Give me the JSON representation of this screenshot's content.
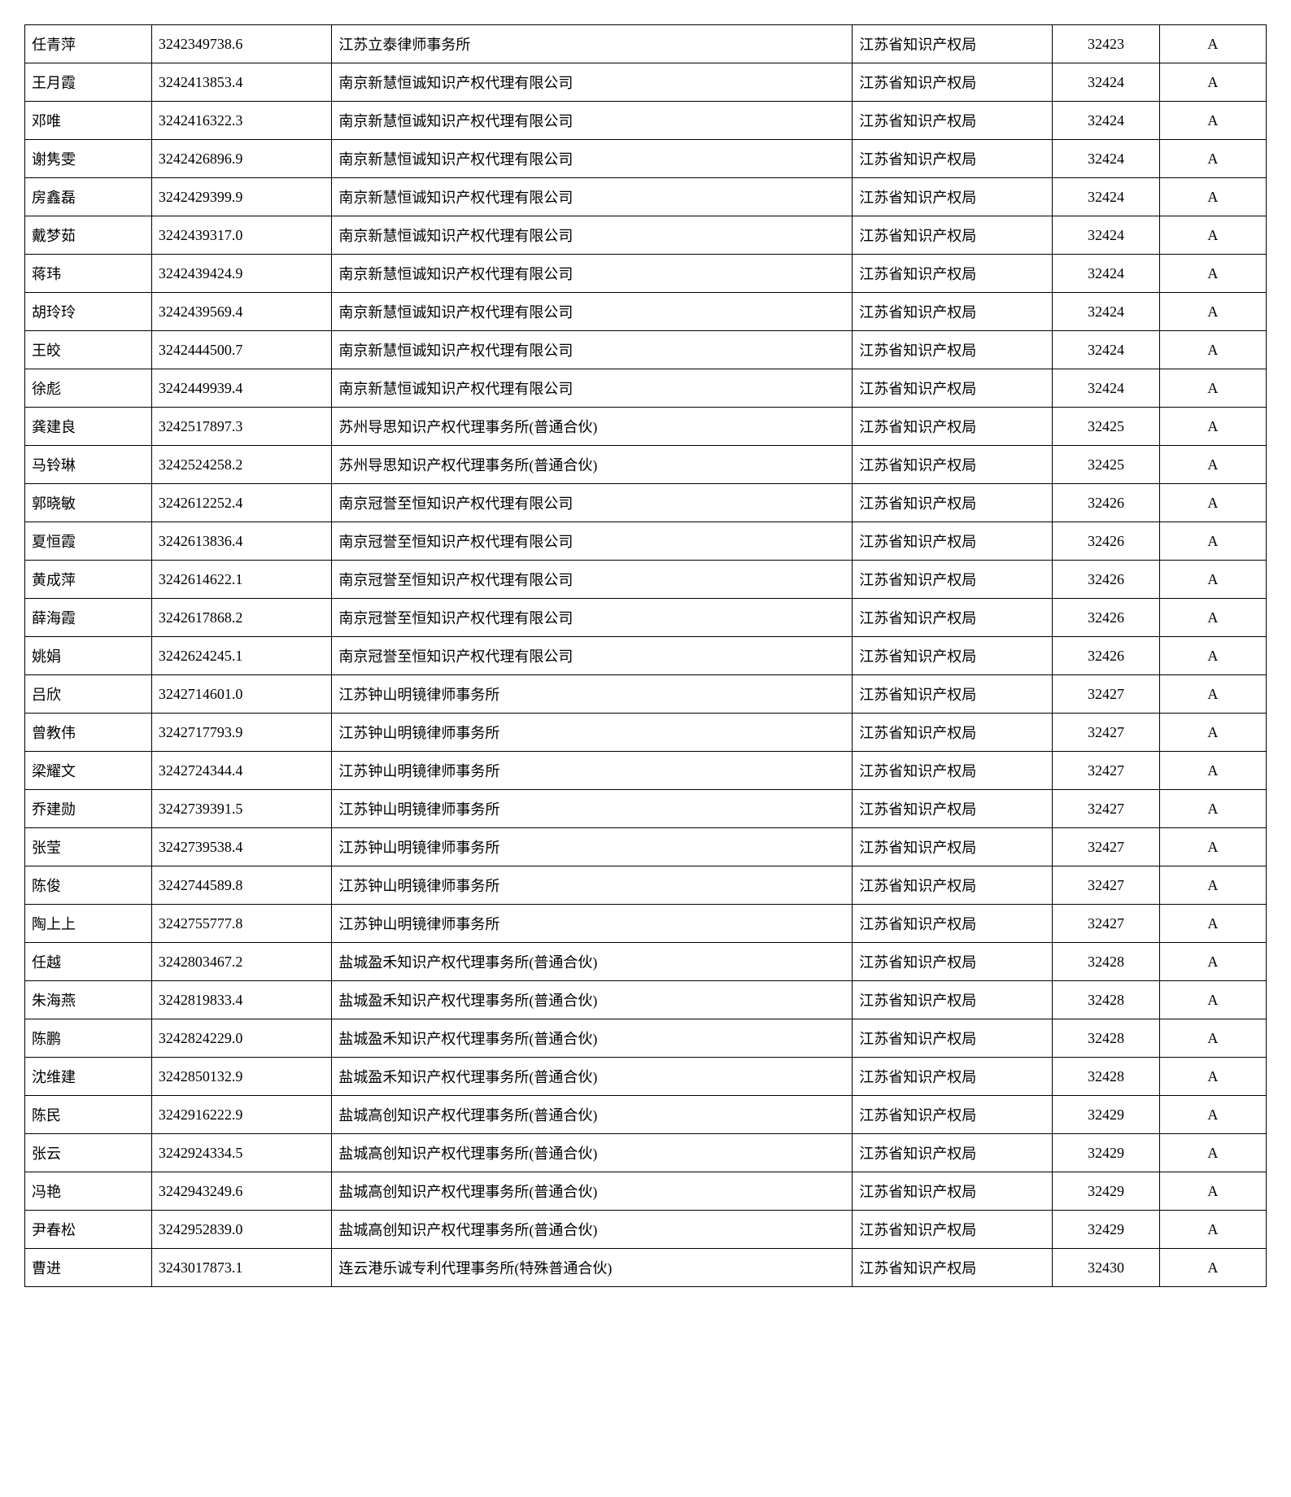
{
  "table": {
    "column_widths_pct": [
      9.5,
      13.5,
      39,
      15,
      8,
      8
    ],
    "column_align": [
      "left",
      "left",
      "left",
      "left",
      "center",
      "center"
    ],
    "font_size_pt": 18,
    "border_color": "#000000",
    "text_color": "#000000",
    "background_color": "#ffffff",
    "rows": [
      {
        "name": "任青萍",
        "id": "3242349738.6",
        "org": "江苏立泰律师事务所",
        "bureau": "江苏省知识产权局",
        "code": "32423",
        "grade": "A"
      },
      {
        "name": "王月霞",
        "id": "3242413853.4",
        "org": "南京新慧恒诚知识产权代理有限公司",
        "bureau": "江苏省知识产权局",
        "code": "32424",
        "grade": "A"
      },
      {
        "name": "邓唯",
        "id": "3242416322.3",
        "org": "南京新慧恒诚知识产权代理有限公司",
        "bureau": "江苏省知识产权局",
        "code": "32424",
        "grade": "A"
      },
      {
        "name": "谢隽雯",
        "id": "3242426896.9",
        "org": "南京新慧恒诚知识产权代理有限公司",
        "bureau": "江苏省知识产权局",
        "code": "32424",
        "grade": "A"
      },
      {
        "name": "房鑫磊",
        "id": "3242429399.9",
        "org": "南京新慧恒诚知识产权代理有限公司",
        "bureau": "江苏省知识产权局",
        "code": "32424",
        "grade": "A"
      },
      {
        "name": "戴梦茹",
        "id": "3242439317.0",
        "org": "南京新慧恒诚知识产权代理有限公司",
        "bureau": "江苏省知识产权局",
        "code": "32424",
        "grade": "A"
      },
      {
        "name": "蒋玮",
        "id": "3242439424.9",
        "org": "南京新慧恒诚知识产权代理有限公司",
        "bureau": "江苏省知识产权局",
        "code": "32424",
        "grade": "A"
      },
      {
        "name": "胡玲玲",
        "id": "3242439569.4",
        "org": "南京新慧恒诚知识产权代理有限公司",
        "bureau": "江苏省知识产权局",
        "code": "32424",
        "grade": "A"
      },
      {
        "name": "王皎",
        "id": "3242444500.7",
        "org": "南京新慧恒诚知识产权代理有限公司",
        "bureau": "江苏省知识产权局",
        "code": "32424",
        "grade": "A"
      },
      {
        "name": "徐彪",
        "id": "3242449939.4",
        "org": "南京新慧恒诚知识产权代理有限公司",
        "bureau": "江苏省知识产权局",
        "code": "32424",
        "grade": "A"
      },
      {
        "name": "龚建良",
        "id": "3242517897.3",
        "org": "苏州导思知识产权代理事务所(普通合伙)",
        "bureau": "江苏省知识产权局",
        "code": "32425",
        "grade": "A"
      },
      {
        "name": "马铃琳",
        "id": "3242524258.2",
        "org": "苏州导思知识产权代理事务所(普通合伙)",
        "bureau": "江苏省知识产权局",
        "code": "32425",
        "grade": "A"
      },
      {
        "name": "郭晓敏",
        "id": "3242612252.4",
        "org": "南京冠誉至恒知识产权代理有限公司",
        "bureau": "江苏省知识产权局",
        "code": "32426",
        "grade": "A"
      },
      {
        "name": "夏恒霞",
        "id": "3242613836.4",
        "org": "南京冠誉至恒知识产权代理有限公司",
        "bureau": "江苏省知识产权局",
        "code": "32426",
        "grade": "A"
      },
      {
        "name": "黄成萍",
        "id": "3242614622.1",
        "org": "南京冠誉至恒知识产权代理有限公司",
        "bureau": "江苏省知识产权局",
        "code": "32426",
        "grade": "A"
      },
      {
        "name": "薛海霞",
        "id": "3242617868.2",
        "org": "南京冠誉至恒知识产权代理有限公司",
        "bureau": "江苏省知识产权局",
        "code": "32426",
        "grade": "A"
      },
      {
        "name": "姚娟",
        "id": "3242624245.1",
        "org": "南京冠誉至恒知识产权代理有限公司",
        "bureau": "江苏省知识产权局",
        "code": "32426",
        "grade": "A"
      },
      {
        "name": "吕欣",
        "id": "3242714601.0",
        "org": "江苏钟山明镜律师事务所",
        "bureau": "江苏省知识产权局",
        "code": "32427",
        "grade": "A"
      },
      {
        "name": "曾教伟",
        "id": "3242717793.9",
        "org": "江苏钟山明镜律师事务所",
        "bureau": "江苏省知识产权局",
        "code": "32427",
        "grade": "A"
      },
      {
        "name": "梁耀文",
        "id": "3242724344.4",
        "org": "江苏钟山明镜律师事务所",
        "bureau": "江苏省知识产权局",
        "code": "32427",
        "grade": "A"
      },
      {
        "name": "乔建勋",
        "id": "3242739391.5",
        "org": "江苏钟山明镜律师事务所",
        "bureau": "江苏省知识产权局",
        "code": "32427",
        "grade": "A"
      },
      {
        "name": "张莹",
        "id": "3242739538.4",
        "org": "江苏钟山明镜律师事务所",
        "bureau": "江苏省知识产权局",
        "code": "32427",
        "grade": "A"
      },
      {
        "name": "陈俊",
        "id": "3242744589.8",
        "org": "江苏钟山明镜律师事务所",
        "bureau": "江苏省知识产权局",
        "code": "32427",
        "grade": "A"
      },
      {
        "name": "陶上上",
        "id": "3242755777.8",
        "org": "江苏钟山明镜律师事务所",
        "bureau": "江苏省知识产权局",
        "code": "32427",
        "grade": "A"
      },
      {
        "name": "任越",
        "id": "3242803467.2",
        "org": "盐城盈禾知识产权代理事务所(普通合伙)",
        "bureau": "江苏省知识产权局",
        "code": "32428",
        "grade": "A"
      },
      {
        "name": "朱海燕",
        "id": "3242819833.4",
        "org": "盐城盈禾知识产权代理事务所(普通合伙)",
        "bureau": "江苏省知识产权局",
        "code": "32428",
        "grade": "A"
      },
      {
        "name": "陈鹏",
        "id": "3242824229.0",
        "org": "盐城盈禾知识产权代理事务所(普通合伙)",
        "bureau": "江苏省知识产权局",
        "code": "32428",
        "grade": "A"
      },
      {
        "name": "沈维建",
        "id": "3242850132.9",
        "org": "盐城盈禾知识产权代理事务所(普通合伙)",
        "bureau": "江苏省知识产权局",
        "code": "32428",
        "grade": "A"
      },
      {
        "name": "陈民",
        "id": "3242916222.9",
        "org": "盐城高创知识产权代理事务所(普通合伙)",
        "bureau": "江苏省知识产权局",
        "code": "32429",
        "grade": "A"
      },
      {
        "name": "张云",
        "id": "3242924334.5",
        "org": "盐城高创知识产权代理事务所(普通合伙)",
        "bureau": "江苏省知识产权局",
        "code": "32429",
        "grade": "A"
      },
      {
        "name": "冯艳",
        "id": "3242943249.6",
        "org": "盐城高创知识产权代理事务所(普通合伙)",
        "bureau": "江苏省知识产权局",
        "code": "32429",
        "grade": "A"
      },
      {
        "name": "尹春松",
        "id": "3242952839.0",
        "org": "盐城高创知识产权代理事务所(普通合伙)",
        "bureau": "江苏省知识产权局",
        "code": "32429",
        "grade": "A"
      },
      {
        "name": "曹进",
        "id": "3243017873.1",
        "org": "连云港乐诚专利代理事务所(特殊普通合伙)",
        "bureau": "江苏省知识产权局",
        "code": "32430",
        "grade": "A"
      }
    ]
  }
}
